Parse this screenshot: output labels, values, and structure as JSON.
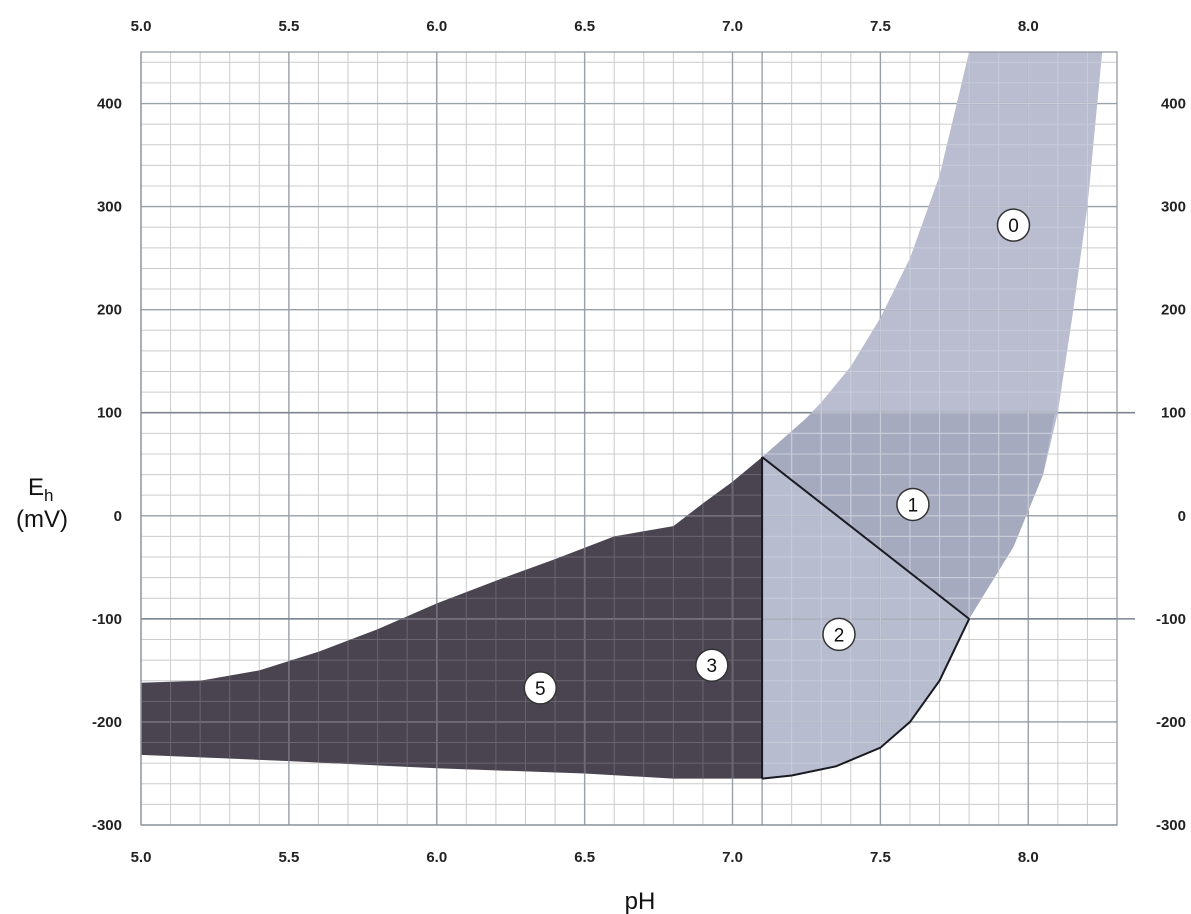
{
  "chart_data": {
    "type": "area",
    "title": "",
    "xlabel": "pH",
    "ylabel_main": "E",
    "ylabel_sub": "h",
    "ylabel_unit": "(mV)",
    "xlim": [
      5.0,
      8.3
    ],
    "ylim": [
      -300,
      450
    ],
    "x_ticks": [
      {
        "value": 5.0,
        "label": "5.0"
      },
      {
        "value": 5.5,
        "label": "5.5"
      },
      {
        "value": 6.0,
        "label": "6.0"
      },
      {
        "value": 6.5,
        "label": "6.5"
      },
      {
        "value": 7.0,
        "label": "7.0"
      },
      {
        "value": 7.5,
        "label": "7.5"
      },
      {
        "value": 8.0,
        "label": "8.0"
      }
    ],
    "y_ticks": [
      {
        "value": 400,
        "label": "400"
      },
      {
        "value": 300,
        "label": "300"
      },
      {
        "value": 200,
        "label": "200"
      },
      {
        "value": 100,
        "label": "100"
      },
      {
        "value": 0,
        "label": "0"
      },
      {
        "value": -100,
        "label": "-100"
      },
      {
        "value": -200,
        "label": "-200"
      },
      {
        "value": -300,
        "label": "-300"
      }
    ],
    "grid": true,
    "secondary_axes": "top and right mirror bottom and left",
    "regions": [
      {
        "label": "0",
        "color": "#b9bdcf",
        "label_at": {
          "x": 7.95,
          "y": 282
        },
        "polygon": [
          [
            7.1,
            57
          ],
          [
            7.2,
            80
          ],
          [
            7.3,
            110
          ],
          [
            7.4,
            145
          ],
          [
            7.5,
            192
          ],
          [
            7.6,
            250
          ],
          [
            7.7,
            330
          ],
          [
            7.8,
            450
          ],
          [
            8.25,
            450
          ],
          [
            8.2,
            300
          ],
          [
            8.15,
            195
          ],
          [
            8.1,
            100
          ],
          [
            8.05,
            40
          ],
          [
            7.95,
            -30
          ],
          [
            7.8,
            -100
          ]
        ]
      },
      {
        "label": "1",
        "color": "#a6aabf",
        "label_at": {
          "x": 7.61,
          "y": 11
        },
        "polygon": [
          [
            7.1,
            57
          ],
          [
            7.27,
            100
          ],
          [
            8.09,
            100
          ],
          [
            8.05,
            40
          ],
          [
            7.95,
            -30
          ],
          [
            7.8,
            -100
          ]
        ]
      },
      {
        "label": "2",
        "color": "#b7bccf",
        "label_at": {
          "x": 7.36,
          "y": -115
        },
        "polygon": [
          [
            7.1,
            57
          ],
          [
            7.8,
            -100
          ],
          [
            7.7,
            -160
          ],
          [
            7.6,
            -200
          ],
          [
            7.5,
            -225
          ],
          [
            7.35,
            -243
          ],
          [
            7.2,
            -252
          ],
          [
            7.1,
            -255
          ]
        ]
      },
      {
        "label": "3",
        "color": "#4a4450",
        "label_at": {
          "x": 6.93,
          "y": -145
        },
        "polygon": [
          [
            6.8,
            -10
          ],
          [
            6.9,
            12
          ],
          [
            7.0,
            33
          ],
          [
            7.1,
            57
          ],
          [
            7.1,
            -255
          ],
          [
            6.8,
            -255
          ]
        ]
      },
      {
        "label": "5",
        "color": "#4a4450",
        "label_at": {
          "x": 6.35,
          "y": -167
        },
        "polygon": [
          [
            5.0,
            -162
          ],
          [
            5.2,
            -160
          ],
          [
            5.4,
            -150
          ],
          [
            5.6,
            -132
          ],
          [
            5.8,
            -110
          ],
          [
            6.0,
            -85
          ],
          [
            6.2,
            -63
          ],
          [
            6.4,
            -42
          ],
          [
            6.6,
            -20
          ],
          [
            6.8,
            -10
          ],
          [
            6.8,
            -255
          ],
          [
            6.5,
            -250
          ],
          [
            6.0,
            -245
          ],
          [
            5.5,
            -238
          ],
          [
            5.0,
            -232
          ]
        ]
      }
    ],
    "boundary_lines": [
      {
        "from": [
          7.1,
          57
        ],
        "to": [
          7.8,
          -100
        ]
      },
      {
        "from": [
          7.1,
          57
        ],
        "to": [
          7.1,
          -255
        ]
      }
    ],
    "reference_lines": [
      {
        "axis": "y",
        "value": 100
      },
      {
        "axis": "y",
        "value": -100
      },
      {
        "axis": "x",
        "value": 7.1
      }
    ]
  }
}
